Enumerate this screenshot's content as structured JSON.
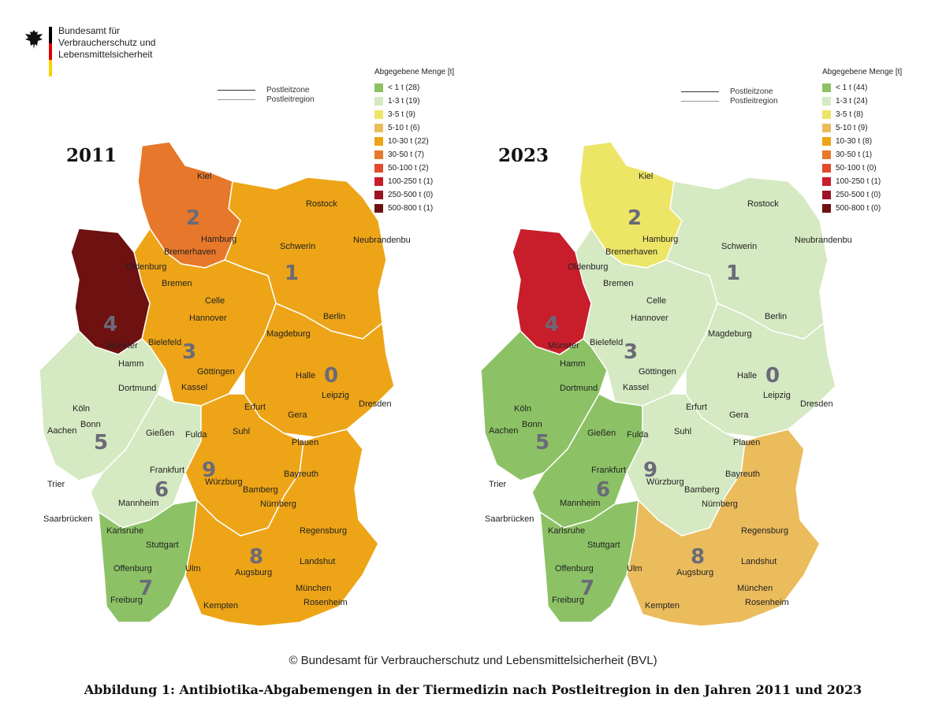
{
  "header": {
    "agency_lines": [
      "Bundesamt für",
      "Verbraucherschutz und",
      "Lebensmittelsicherheit"
    ],
    "flag_colors": [
      "#000000",
      "#dd0000",
      "#ffce00"
    ]
  },
  "legend_lines": {
    "zone": "Postleitzone",
    "region": "Postleitregion"
  },
  "legend_title": "Abgegebene Menge [t]",
  "classes": [
    {
      "label": "< 1 t",
      "color": "#8cc265"
    },
    {
      "label": "1-3 t",
      "color": "#d5e9c2"
    },
    {
      "label": "3-5 t",
      "color": "#ede566"
    },
    {
      "label": "5-10 t",
      "color": "#ebbc5c"
    },
    {
      "label": "10-30 t",
      "color": "#eda416"
    },
    {
      "label": "30-50 t",
      "color": "#e7772a"
    },
    {
      "label": "50-100 t",
      "color": "#e24a2b"
    },
    {
      "label": "100-250 t",
      "color": "#c81d2a"
    },
    {
      "label": "250-500 t",
      "color": "#9b1424"
    },
    {
      "label": "500-800 t",
      "color": "#6e1111"
    }
  ],
  "maps": [
    {
      "year": "2011",
      "legend_items": [
        "< 1 t (28)",
        "1-3 t (19)",
        "3-5 t (9)",
        "5-10 t (6)",
        "10-30 t (22)",
        "30-50 t (7)",
        "50-100 t (2)",
        "100-250 t (1)",
        "250-500 t (0)",
        "500-800 t (1)"
      ],
      "zones": [
        {
          "zone": "0",
          "class": 4
        },
        {
          "zone": "1",
          "class": 4
        },
        {
          "zone": "2",
          "class": 5
        },
        {
          "zone": "3",
          "class": 4
        },
        {
          "zone": "4",
          "class": 9
        },
        {
          "zone": "5",
          "class": 1
        },
        {
          "zone": "6",
          "class": 1
        },
        {
          "zone": "7",
          "class": 0
        },
        {
          "zone": "8",
          "class": 4
        },
        {
          "zone": "9",
          "class": 4
        }
      ]
    },
    {
      "year": "2023",
      "legend_items": [
        "< 1 t (44)",
        "1-3 t (24)",
        "3-5 t (8)",
        "5-10 t (9)",
        "10-30 t (8)",
        "30-50 t (1)",
        "50-100 t (0)",
        "100-250 t (1)",
        "250-500 t (0)",
        "500-800 t (0)"
      ],
      "zones": [
        {
          "zone": "0",
          "class": 1
        },
        {
          "zone": "1",
          "class": 1
        },
        {
          "zone": "2",
          "class": 2
        },
        {
          "zone": "3",
          "class": 1
        },
        {
          "zone": "4",
          "class": 7
        },
        {
          "zone": "5",
          "class": 0
        },
        {
          "zone": "6",
          "class": 0
        },
        {
          "zone": "7",
          "class": 0
        },
        {
          "zone": "8",
          "class": 3
        },
        {
          "zone": "9",
          "class": 1
        }
      ]
    }
  ],
  "cities": [
    "Kiel",
    "Rostock",
    "Hamburg",
    "Schwerin",
    "Neubrandenburg",
    "Bremerhaven",
    "Oldenburg",
    "Bremen",
    "Celle",
    "Hannover",
    "Berlin",
    "Magdeburg",
    "Münster",
    "Bielefeld",
    "Hamm",
    "Dortmund",
    "Göttingen",
    "Kassel",
    "Halle",
    "Leipzig",
    "Dresden",
    "Köln",
    "Bonn",
    "Aachen",
    "Gießen",
    "Erfurt",
    "Gera",
    "Fulda",
    "Suhl",
    "Plauen",
    "Frankfurt",
    "Würzburg",
    "Bayreuth",
    "Bamberg",
    "Nürnberg",
    "Trier",
    "Mannheim",
    "Saarbrücken",
    "Karlsruhe",
    "Regensburg",
    "Stuttgart",
    "Ulm",
    "Augsburg",
    "Landshut",
    "Offenburg",
    "Freiburg",
    "Kempten",
    "München",
    "Rosenheim"
  ],
  "zone_numbers": [
    "0",
    "1",
    "2",
    "3",
    "4",
    "5",
    "6",
    "7",
    "8",
    "9"
  ],
  "copyright": "© Bundesamt für Verbraucherschutz und Lebensmittelsicherheit (BVL)",
  "caption": "Abbildung 1: Antibiotika-Abgabemengen in der Tiermedizin nach Postleitregion in den Jahren 2011 und 2023"
}
